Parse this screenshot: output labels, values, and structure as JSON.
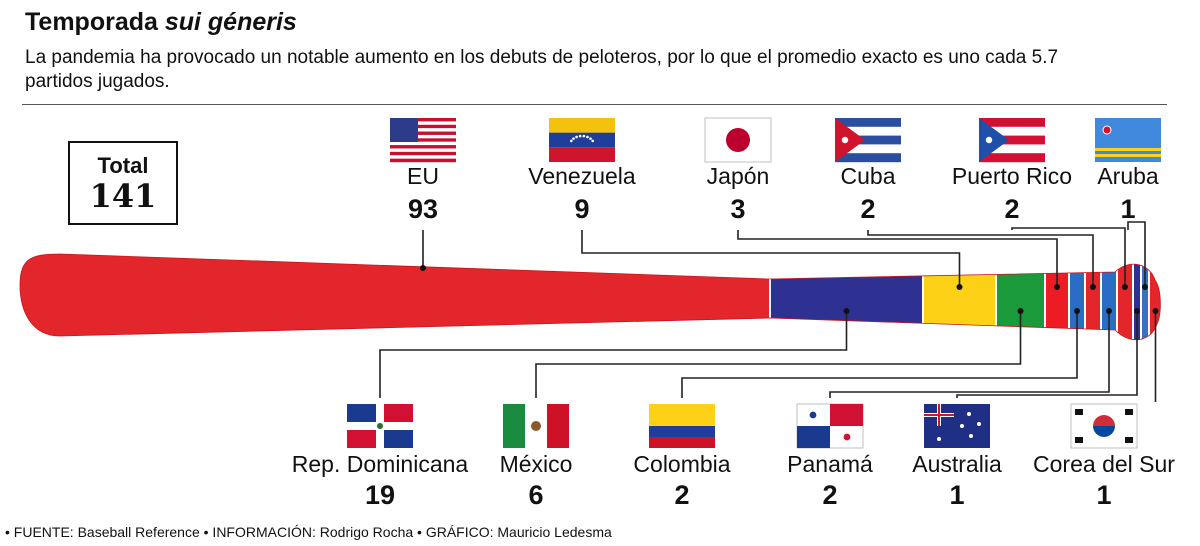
{
  "header": {
    "title_main": "Temporada ",
    "title_italic": "sui géneris",
    "subtitle": "La pandemia ha provocado un notable aumento en los debuts de peloteros, por lo que el promedio exacto es uno cada 5.7 partidos jugados."
  },
  "total": {
    "label": "Total",
    "value": "141"
  },
  "footer": "• FUENTE: Baseball Reference • INFORMACIÓN:  Rodrigo Rocha  • GRÁFICO:  Mauricio Ledesma",
  "chart_data": {
    "type": "bar",
    "stacked": true,
    "orientation": "horizontal",
    "total": 141,
    "categories": [
      "EU",
      "Rep. Dominicana",
      "Venezuela",
      "México",
      "Japón",
      "Colombia",
      "Cuba",
      "Panamá",
      "Puerto Rico",
      "Australia",
      "Aruba",
      "Corea del Sur"
    ],
    "values": [
      93,
      19,
      9,
      6,
      3,
      2,
      2,
      2,
      2,
      1,
      1,
      1
    ],
    "segment_colors": [
      "#e3262b",
      "#2e3192",
      "#fcd116",
      "#1a9a3b",
      "#ed1c24",
      "#2b6cc4",
      "#e3262b",
      "#2b6cc4",
      "#e3262b",
      "#2e3192",
      "#3b6fc4",
      "#e3262b"
    ],
    "label_positions": [
      "top",
      "bottom",
      "top",
      "bottom",
      "top",
      "bottom",
      "top",
      "bottom",
      "top",
      "bottom",
      "top",
      "bottom"
    ],
    "flag_icons": [
      "usa-flag-icon",
      "dominican-republic-flag-icon",
      "venezuela-flag-icon",
      "mexico-flag-icon",
      "japan-flag-icon",
      "colombia-flag-icon",
      "cuba-flag-icon",
      "panama-flag-icon",
      "puerto-rico-flag-icon",
      "australia-flag-icon",
      "aruba-flag-icon",
      "south-korea-flag-icon"
    ]
  }
}
